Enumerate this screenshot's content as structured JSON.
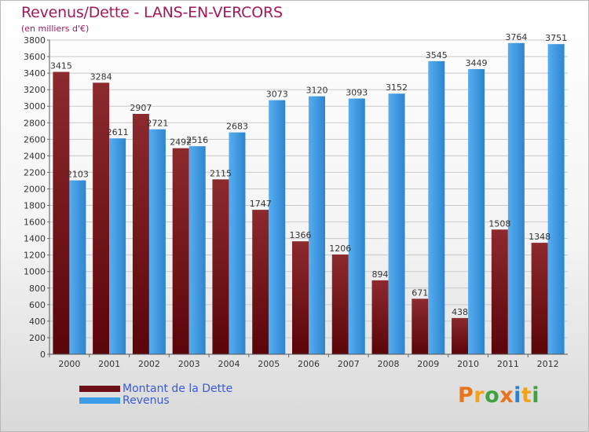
{
  "title": "Revenus/Dette - LANS-EN-VERCORS",
  "subtitle": "(en milliers d'€)",
  "logo": {
    "text": "Proxiti"
  },
  "colors": {
    "dette": "#6e1018",
    "revenus": "#3d9be5",
    "title": "#a2195a",
    "legend_text": "#3a5bd6",
    "grid": "#c9c9c9"
  },
  "legend": [
    {
      "label": "Montant de la Dette",
      "color": "#6e1018"
    },
    {
      "label": "Revenus",
      "color": "#3d9be5"
    }
  ],
  "chart_data": {
    "type": "bar",
    "categories": [
      "2000",
      "2001",
      "2002",
      "2003",
      "2004",
      "2005",
      "2006",
      "2007",
      "2008",
      "2009",
      "2010",
      "2011",
      "2012"
    ],
    "series": [
      {
        "name": "Montant de la Dette",
        "values": [
          3415,
          3284,
          2907,
          2492,
          2115,
          1747,
          1366,
          1206,
          894,
          671,
          438,
          1508,
          1348
        ]
      },
      {
        "name": "Revenus",
        "values": [
          2103,
          2611,
          2721,
          2516,
          2683,
          3073,
          3120,
          3093,
          3152,
          3545,
          3449,
          3764,
          3751
        ]
      }
    ],
    "data_labels": [
      [
        "3415",
        "3284",
        "2907",
        "2492",
        "2115",
        "1747",
        "1366",
        "1206",
        "894",
        "671",
        "438",
        "1508",
        "1348"
      ],
      [
        "2103",
        "2611",
        "2721",
        "2516",
        "2683",
        "3073",
        "3120",
        "3093",
        "3152",
        "3545",
        "3449",
        "3764",
        "3751"
      ]
    ],
    "ylim": [
      0,
      3800
    ],
    "yticks": [
      0,
      200,
      400,
      600,
      800,
      1000,
      1200,
      1400,
      1600,
      1800,
      2000,
      2200,
      2400,
      2600,
      2800,
      3000,
      3200,
      3400,
      3600,
      3800
    ],
    "grid": true,
    "legend_position": "bottom-left",
    "xlabel": "",
    "ylabel": ""
  }
}
